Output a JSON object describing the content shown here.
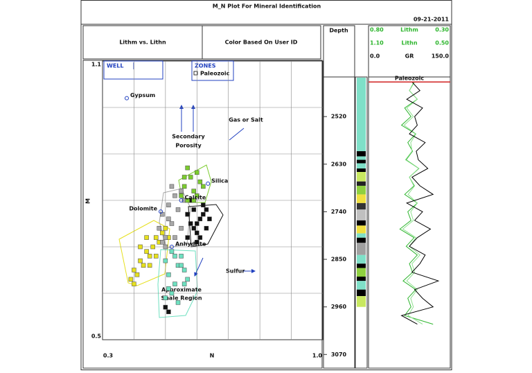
{
  "header": {
    "title": "M_N Plot For Mineral Identification",
    "date": "09-21-2011"
  },
  "chart_data": {
    "type": "scatter",
    "panel_titles": [
      "Lithm vs. Lithn",
      "Color Based On User ID"
    ],
    "xlabel": "N",
    "ylabel": "M",
    "xlim": [
      0.3,
      1.0
    ],
    "ylim": [
      0.5,
      1.1
    ],
    "xticks": [
      0.3,
      {
        "value": 1.0,
        "label": "1.0"
      }
    ],
    "yticks": [
      1.1,
      0.5
    ],
    "xgrid": [
      0.4,
      0.5,
      0.6,
      0.7,
      0.8,
      0.9
    ],
    "ygrid": [
      0.6,
      0.7,
      0.8,
      0.9,
      1.0
    ],
    "legend": {
      "well": "WELL",
      "zones": "ZONES",
      "zone_names": [
        "Paleozoic"
      ]
    },
    "series": [
      {
        "color": "#e6e01e",
        "x": [
          0.39,
          0.4,
          0.41,
          0.42,
          0.43,
          0.44,
          0.45,
          0.46,
          0.47,
          0.48,
          0.49,
          0.5,
          0.45,
          0.42,
          0.47,
          0.51,
          0.4,
          0.44
        ],
        "y": [
          0.63,
          0.65,
          0.64,
          0.67,
          0.66,
          0.69,
          0.68,
          0.7,
          0.72,
          0.71,
          0.73,
          0.74,
          0.66,
          0.7,
          0.68,
          0.72,
          0.62,
          0.72
        ]
      },
      {
        "color": "#a8a8a8",
        "x": [
          0.48,
          0.49,
          0.5,
          0.51,
          0.52,
          0.53,
          0.5,
          0.54,
          0.55,
          0.52,
          0.56,
          0.49,
          0.53,
          0.51,
          0.55,
          0.57
        ],
        "y": [
          0.74,
          0.77,
          0.72,
          0.79,
          0.75,
          0.81,
          0.7,
          0.78,
          0.74,
          0.83,
          0.8,
          0.71,
          0.72,
          0.76,
          0.82,
          0.77
        ]
      },
      {
        "color": "#111111",
        "x": [
          0.57,
          0.58,
          0.59,
          0.6,
          0.61,
          0.62,
          0.63,
          0.6,
          0.58,
          0.62,
          0.64,
          0.59,
          0.61,
          0.57,
          0.63,
          0.6,
          0.5,
          0.51
        ],
        "y": [
          0.72,
          0.75,
          0.78,
          0.73,
          0.76,
          0.79,
          0.74,
          0.71,
          0.8,
          0.77,
          0.76,
          0.74,
          0.72,
          0.77,
          0.78,
          0.75,
          0.57,
          0.56
        ]
      },
      {
        "color": "#7ccc2e",
        "x": [
          0.55,
          0.56,
          0.57,
          0.58,
          0.59,
          0.6,
          0.61,
          0.62,
          0.57,
          0.59,
          0.56,
          0.6
        ],
        "y": [
          0.81,
          0.83,
          0.8,
          0.85,
          0.82,
          0.86,
          0.84,
          0.83,
          0.87,
          0.8,
          0.85,
          0.81
        ]
      },
      {
        "color": "#6ee0c0",
        "x": [
          0.5,
          0.51,
          0.52,
          0.53,
          0.54,
          0.55,
          0.56,
          0.57,
          0.52,
          0.54,
          0.51,
          0.55,
          0.53,
          0.56,
          0.5
        ],
        "y": [
          0.67,
          0.64,
          0.69,
          0.62,
          0.66,
          0.68,
          0.65,
          0.63,
          0.6,
          0.58,
          0.61,
          0.66,
          0.68,
          0.62,
          0.59
        ]
      }
    ],
    "minerals": [
      {
        "label": "Gypsum",
        "x": 0.377,
        "y": 1.02
      },
      {
        "label": "Silica",
        "x": 0.635,
        "y": 0.836
      },
      {
        "label": "Calcite",
        "x": 0.55,
        "y": 0.8
      },
      {
        "label": "Dolomite",
        "x": 0.485,
        "y": 0.776
      },
      {
        "label": "Anhydrite",
        "x": 0.52,
        "y": 0.7
      }
    ],
    "annotations": {
      "porosity": [
        "Secondary",
        "Porosity"
      ],
      "gas": "Gas or Salt",
      "sulfur": "Sulfur",
      "shale": [
        "Approximate",
        "Shale Region"
      ]
    }
  },
  "depth_track": {
    "title": "Depth",
    "ylim": [
      2430,
      3100
    ],
    "ticks": [
      2520,
      2630,
      2740,
      2850,
      2960,
      3070
    ],
    "intervals": [
      {
        "top": 2430,
        "base": 2600,
        "color": "#7fe0c8"
      },
      {
        "top": 2600,
        "base": 2612,
        "color": "#000000"
      },
      {
        "top": 2612,
        "base": 2620,
        "color": "#7fe0c8"
      },
      {
        "top": 2620,
        "base": 2628,
        "color": "#000000"
      },
      {
        "top": 2628,
        "base": 2640,
        "color": "#7fe0c8"
      },
      {
        "top": 2640,
        "base": 2648,
        "color": "#000000"
      },
      {
        "top": 2648,
        "base": 2670,
        "color": "#c8e860"
      },
      {
        "top": 2670,
        "base": 2680,
        "color": "#222222"
      },
      {
        "top": 2680,
        "base": 2700,
        "color": "#8fd040"
      },
      {
        "top": 2700,
        "base": 2720,
        "color": "#f0e040"
      },
      {
        "top": 2720,
        "base": 2735,
        "color": "#333333"
      },
      {
        "top": 2735,
        "base": 2760,
        "color": "#c0c0c0"
      },
      {
        "top": 2760,
        "base": 2772,
        "color": "#000000"
      },
      {
        "top": 2772,
        "base": 2790,
        "color": "#f0e040"
      },
      {
        "top": 2790,
        "base": 2800,
        "color": "#7fe0c8"
      },
      {
        "top": 2800,
        "base": 2812,
        "color": "#000000"
      },
      {
        "top": 2812,
        "base": 2840,
        "color": "#a0a0a0"
      },
      {
        "top": 2840,
        "base": 2860,
        "color": "#7fe0c8"
      },
      {
        "top": 2860,
        "base": 2870,
        "color": "#000000"
      },
      {
        "top": 2870,
        "base": 2890,
        "color": "#8fd040"
      },
      {
        "top": 2890,
        "base": 2900,
        "color": "#000000"
      },
      {
        "top": 2900,
        "base": 2920,
        "color": "#7fe0c8"
      },
      {
        "top": 2920,
        "base": 2935,
        "color": "#000000"
      },
      {
        "top": 2935,
        "base": 2960,
        "color": "#c8e860"
      }
    ]
  },
  "log_track": {
    "zone": {
      "name": "Paleozoic",
      "top": 2440
    },
    "depths": [
      2440,
      2460,
      2480,
      2500,
      2520,
      2540,
      2560,
      2580,
      2600,
      2620,
      2640,
      2660,
      2680,
      2700,
      2720,
      2740,
      2760,
      2780,
      2800,
      2820,
      2840,
      2860,
      2880,
      2900,
      2920,
      2940,
      2960,
      2980,
      3000
    ],
    "curves": [
      {
        "name": "Lithm",
        "color": "#2db52d",
        "scale": [
          {
            "value": 0.8,
            "label": "0.80"
          },
          {
            "value": 0.3,
            "label": "0.30"
          }
        ],
        "values": [
          0.52,
          0.55,
          0.5,
          0.58,
          0.54,
          0.6,
          0.51,
          0.56,
          0.53,
          0.57,
          0.49,
          0.55,
          0.52,
          0.58,
          0.5,
          0.56,
          0.54,
          0.61,
          0.52,
          0.57,
          0.5,
          0.55,
          0.53,
          0.59,
          0.51,
          0.56,
          0.54,
          0.58,
          0.4
        ]
      },
      {
        "name": "Lithn",
        "color": "#8fe08f",
        "scale": [
          {
            "value": 1.1,
            "label": "1.10"
          },
          {
            "value": 0.5,
            "label": "0.50"
          }
        ],
        "values": [
          0.76,
          0.8,
          0.74,
          0.82,
          0.77,
          0.84,
          0.75,
          0.79,
          0.78,
          0.83,
          0.73,
          0.8,
          0.76,
          0.81,
          0.74,
          0.79,
          0.77,
          0.85,
          0.75,
          0.8,
          0.72,
          0.78,
          0.76,
          0.82,
          0.74,
          0.79,
          0.77,
          0.81,
          0.7
        ]
      },
      {
        "name": "GR",
        "color": "#000000",
        "scale": [
          {
            "value": 0,
            "label": "0.0"
          },
          {
            "value": 150,
            "label": "150.0"
          }
        ],
        "values": [
          80,
          95,
          70,
          100,
          85,
          90,
          75,
          105,
          88,
          92,
          110,
          80,
          95,
          120,
          70,
          100,
          85,
          115,
          90,
          75,
          105,
          95,
          80,
          130,
          85,
          100,
          120,
          60,
          90
        ]
      }
    ]
  }
}
